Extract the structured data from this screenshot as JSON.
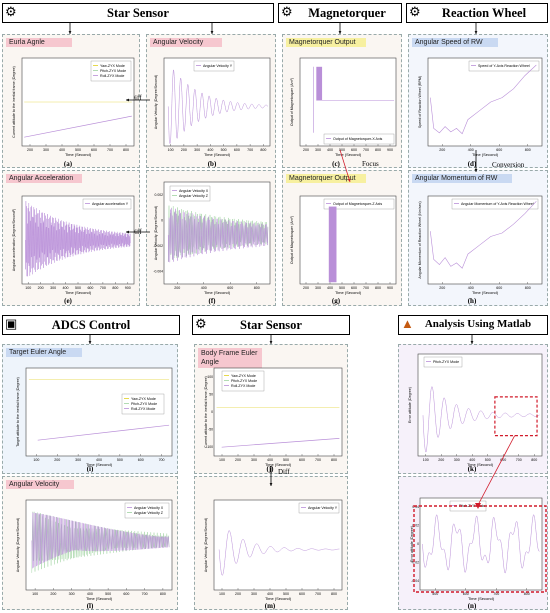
{
  "headers": {
    "star_sensor_top": "Star Sensor",
    "magnetorquer": "Magnetorquer",
    "reaction_wheel": "Reaction Wheel",
    "adcs_control": "ADCS  Control",
    "star_sensor_mid": "Star Sensor",
    "matlab": "Analysis Using Matlab"
  },
  "panels": {
    "a": {
      "tag": "Eurla Agnle",
      "cap": "(a)",
      "ylabel": "Current attitude to the inertial frame (Degree)",
      "xlabel": "Time (Second)",
      "legend": [
        "Yaw-ZYX Mode",
        "Pitch-ZYX Mode",
        "Roll-ZYX Mode"
      ],
      "xticks": [
        "200",
        "300",
        "400",
        "500",
        "600",
        "700",
        "800"
      ]
    },
    "b": {
      "tag": "Angular Velocity",
      "cap": "(b)",
      "ylabel": "Angular Velocity (Degree/Second)",
      "xlabel": "Time (Second)",
      "legend": [
        "Angular Velocity Y"
      ],
      "xticks": [
        "100",
        "200",
        "300",
        "400",
        "500",
        "600",
        "700",
        "800"
      ]
    },
    "c": {
      "tag": "Magnetorquer Output",
      "cap": "(c)",
      "ylabel": "Output of Magnetorquer (Am²)",
      "xlabel": "Time (Second)",
      "legend": [
        "Output of Magnetorquer-X Axis"
      ],
      "xticks": [
        "200",
        "300",
        "400",
        "500",
        "600",
        "700",
        "800",
        "900"
      ]
    },
    "d": {
      "tag": "Angular Speed of RW",
      "cap": "(d)",
      "ylabel": "Speed of Reaction Wheel (RPM)",
      "xlabel": "Time (Second)",
      "legend": [
        "Speed of Y-Axis Reaction Wheel"
      ],
      "xticks": [
        "200",
        "400",
        "600",
        "800"
      ]
    },
    "e": {
      "tag": "Angular Acceleration",
      "cap": "(e)",
      "ylabel": "Angular acceleration (Degree/Second²)",
      "xlabel": "Time (Second)",
      "legend": [
        "Angular acceleration Y"
      ],
      "xticks": [
        "100",
        "200",
        "300",
        "400",
        "500",
        "600",
        "700",
        "800",
        "900"
      ]
    },
    "f": {
      "tag": "",
      "cap": "(f)",
      "ylabel": "Angular Velocity (Degree/Second)",
      "xlabel": "Time (Second)",
      "legend": [
        "Angular Velocity X",
        "Angular Velocity Z"
      ],
      "yticks": [
        "0.002",
        "0",
        "-0.002",
        "-0.004"
      ],
      "xticks": [
        "200",
        "400",
        "600",
        "800"
      ]
    },
    "g": {
      "tag": "Magnetorquer Output",
      "cap": "(g)",
      "ylabel": "Output of Magnetorquer (Am²)",
      "xlabel": "Time (Second)",
      "legend": [
        "Output of Magnetorquer-Z Axis"
      ],
      "xticks": [
        "200",
        "300",
        "400",
        "500",
        "600",
        "700",
        "800",
        "900"
      ]
    },
    "h": {
      "tag": "Angular Momentum of RW",
      "cap": "(h)",
      "ylabel": "Angular Momentum of Reaction Wheel (Nm/sec)",
      "xlabel": "Time (Second)",
      "legend": [
        "Angular Momentum of Y-Axis Reaction Wheel"
      ],
      "xticks": [
        "200",
        "400",
        "600",
        "800"
      ]
    },
    "i": {
      "tag": "Target Euler Angle",
      "cap": "(i)",
      "ylabel": "Target attitude to the inertial frame (Degree)",
      "xlabel": "Time (Second)",
      "legend": [
        "Yaw-ZYX Mode",
        "Pitch-ZYX Mode",
        "Roll-ZYX Mode"
      ],
      "xticks": [
        "100",
        "200",
        "300",
        "400",
        "500",
        "600",
        "700"
      ]
    },
    "j": {
      "tag": "Body Frame Euler Angle",
      "cap": "(j)",
      "ylabel": "Current attitude to the inertial frame (Degree)",
      "xlabel": "Time (Second)",
      "legend": [
        "Yaw-ZYX Mode",
        "Pitch-ZYX Mode",
        "Roll-ZYX Mode"
      ],
      "yticks": [
        "100",
        "50",
        "0",
        "-50",
        "-100"
      ],
      "xticks": [
        "100",
        "200",
        "300",
        "400",
        "500",
        "600",
        "700",
        "800"
      ]
    },
    "k": {
      "tag": "",
      "cap": "(k)",
      "ylabel": "Error attitude (Degree)",
      "xlabel": "Time (Second)",
      "legend": [
        "Pitch-ZYX Mode"
      ],
      "xticks": [
        "100",
        "200",
        "300",
        "400",
        "500",
        "600",
        "700",
        "800"
      ]
    },
    "l": {
      "tag": "Angular Velocity",
      "cap": "(l)",
      "ylabel": "Angular Velocity (Degree/Second)",
      "xlabel": "Time (Second)",
      "legend": [
        "Angular Velocity X",
        "Angular Velocity Z"
      ],
      "xticks": [
        "100",
        "200",
        "300",
        "400",
        "500",
        "600",
        "700",
        "800"
      ]
    },
    "m": {
      "tag": "",
      "cap": "(m)",
      "ylabel": "Angular Velocity (Degree/Second)",
      "xlabel": "Time (Second)",
      "legend": [
        "Angular Velocity Y"
      ],
      "xticks": [
        "100",
        "200",
        "300",
        "400",
        "500",
        "600",
        "700",
        "800"
      ]
    },
    "n": {
      "tag": "",
      "cap": "(n)",
      "ylabel": "Error attitude (Degree)",
      "xlabel": "Time (Second)",
      "legend": [
        "Pitch-ZYX Mode"
      ],
      "yticks": [
        "0.04",
        "0.02",
        "0",
        "-0.02",
        "-0.04"
      ],
      "xticks": [
        "500",
        "600",
        "700",
        "800"
      ]
    }
  },
  "arrows": {
    "diff1": "Diff",
    "diff2": "Diff",
    "focus": "Focus",
    "conversion": "Conversion",
    "diff3": "Diff"
  },
  "colors": {
    "pink": "#f6c7cf",
    "blue": "#c9d9f2",
    "yellow": "#f7f0a0",
    "purple": "#b98fd8",
    "green": "#9fd3a0",
    "red": "#d11a2a"
  }
}
